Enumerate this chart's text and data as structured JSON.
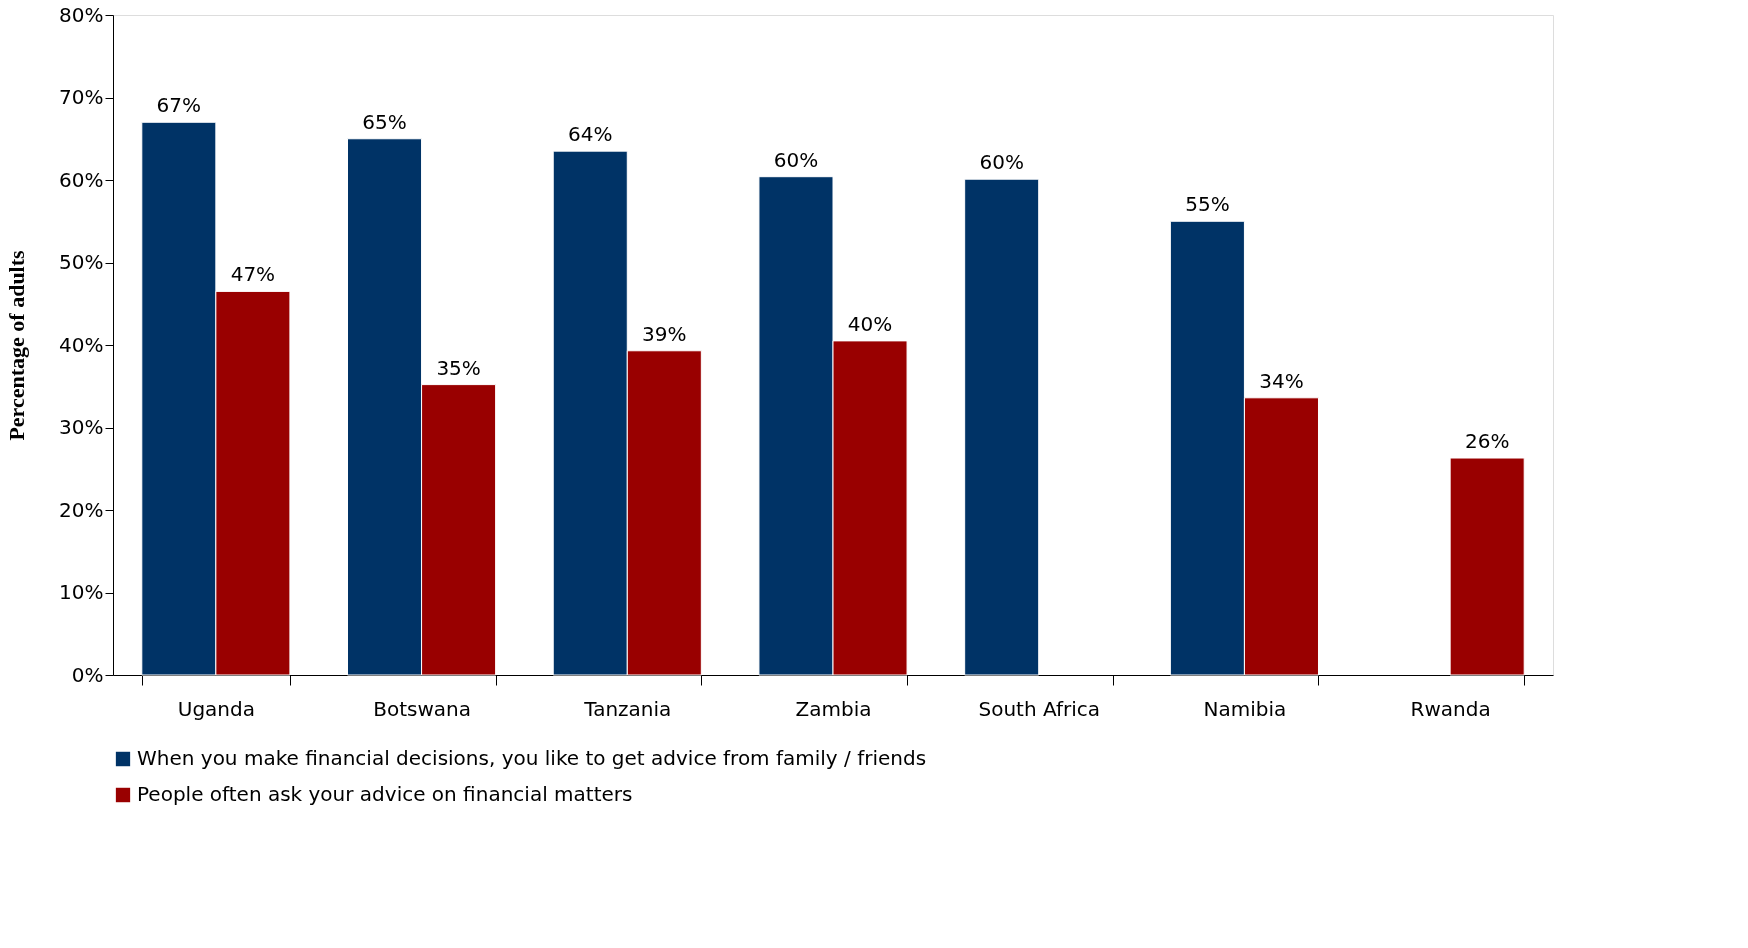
{
  "chart_data": {
    "type": "bar",
    "ylabel": "Percentage of adults",
    "categories": [
      "Uganda",
      "Botswana",
      "Tanzania",
      "Zambia",
      "South Africa",
      "Namibia",
      "Rwanda"
    ],
    "series": [
      {
        "name": "When you make financial decisions, you like to get advice from family / friends",
        "color": "#003366",
        "values": [
          67,
          65,
          63.5,
          60.4,
          60.1,
          55,
          null
        ],
        "value_labels": [
          "67%",
          "65%",
          "64%",
          "60%",
          "60%",
          "55%",
          null
        ]
      },
      {
        "name": "People often ask your advice on financial matters",
        "color": "#990000",
        "values": [
          46.5,
          35.2,
          39.3,
          40.5,
          null,
          33.6,
          26.3
        ],
        "value_labels": [
          "47%",
          "35%",
          "39%",
          "40%",
          null,
          "34%",
          "26%"
        ]
      }
    ],
    "ylim": [
      0,
      80
    ],
    "yticks": [
      {
        "value": 0,
        "label": "0%"
      },
      {
        "value": 10,
        "label": "10%"
      },
      {
        "value": 20,
        "label": "20%"
      },
      {
        "value": 30,
        "label": "30%"
      },
      {
        "value": 40,
        "label": "40%"
      },
      {
        "value": 50,
        "label": "50%"
      },
      {
        "value": 60,
        "label": "60%"
      },
      {
        "value": 70,
        "label": "70%"
      },
      {
        "value": 80,
        "label": "80%"
      }
    ],
    "grid": false,
    "legend": "bottom"
  }
}
